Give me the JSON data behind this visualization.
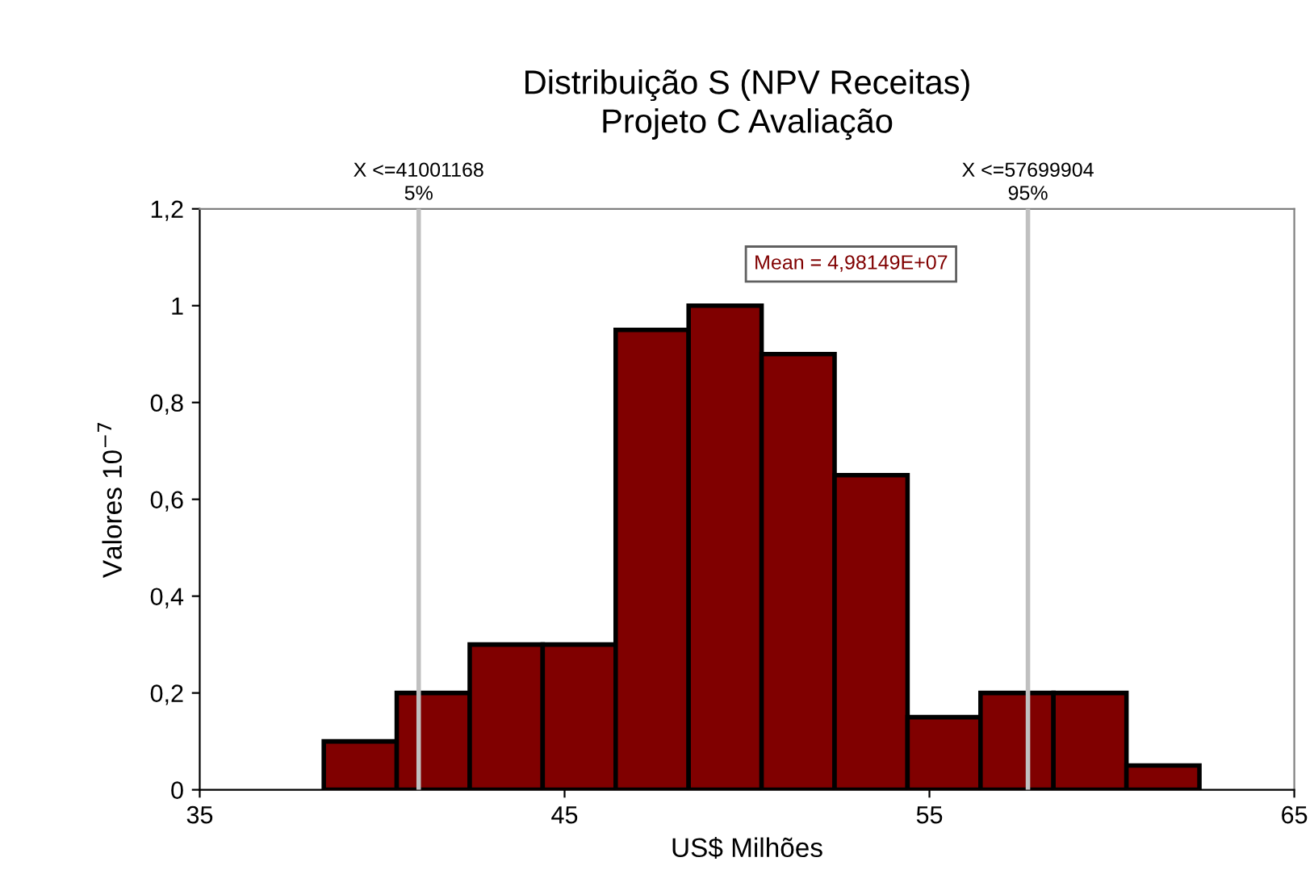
{
  "chart_data": {
    "type": "histogram",
    "title": "Distribuição S (NPV Receitas)\nProjeto C Avaliação",
    "xlabel": "US$ Milhões",
    "ylabel": "Valores 10$^{−7}$",
    "bins": [
      38.4,
      40.4,
      42.4,
      44.4,
      46.4,
      48.4,
      50.4,
      52.4,
      54.4,
      56.4,
      58.4,
      60.4,
      62.4
    ],
    "values": [
      0.1,
      0.2,
      0.3,
      0.3,
      0.95,
      1,
      0.9,
      0.65,
      0.15,
      0.2,
      0.2,
      0.05
    ],
    "color": "#800000",
    "xlim": [
      35,
      65
    ],
    "xticks": [
      35,
      45,
      55,
      65
    ],
    "ylim": [
      0,
      1.2
    ],
    "yticks": [
      {
        "value": 0,
        "label": "0"
      },
      {
        "value": 0.2,
        "label": "0,2"
      },
      {
        "value": 0.4,
        "label": "0,4"
      },
      {
        "value": 0.6,
        "label": "0,6"
      },
      {
        "value": 0.8,
        "label": "0,8"
      },
      {
        "value": 1,
        "label": "1"
      },
      {
        "value": 1.2,
        "label": "1,2"
      }
    ],
    "ref_lines": [
      {
        "axis": "x",
        "value": 41.001168,
        "label": "X <=41001168\n5%",
        "color": "#c0c0c0"
      },
      {
        "axis": "x",
        "value": 57.699904,
        "label": "X <=57699904\n95%",
        "color": "#c0c0c0"
      }
    ],
    "annotations": [
      "Mean = 4,98149E+07"
    ],
    "grid": false,
    "legend": false
  }
}
